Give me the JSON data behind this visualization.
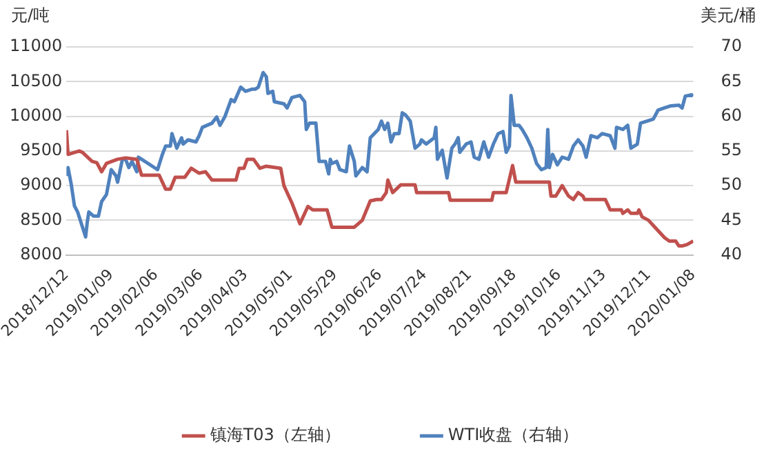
{
  "chart_data": {
    "type": "line",
    "ylabel": "元/吨",
    "y2label": "美元/桶",
    "legend": "bottom",
    "grid": "y",
    "marker": "none",
    "line_style": "solid",
    "ylim": [
      8000,
      11000
    ],
    "yticks": [
      8000,
      8500,
      9000,
      9500,
      10000,
      10500,
      11000
    ],
    "y2lim": [
      40,
      70
    ],
    "y2ticks": [
      40,
      45,
      50,
      55,
      60,
      65,
      70
    ],
    "xlim": [
      "2018-12-12",
      "2020-01-08"
    ],
    "xticks": [
      {
        "value": "2018-12-12",
        "label": "2018/12/12"
      },
      {
        "value": "2019-01-09",
        "label": "2019/01/09"
      },
      {
        "value": "2019-02-06",
        "label": "2019/02/06"
      },
      {
        "value": "2019-03-06",
        "label": "2019/03/06"
      },
      {
        "value": "2019-04-03",
        "label": "2019/04/03"
      },
      {
        "value": "2019-05-01",
        "label": "2019/05/01"
      },
      {
        "value": "2019-05-29",
        "label": "2019/05/29"
      },
      {
        "value": "2019-06-26",
        "label": "2019/06/26"
      },
      {
        "value": "2019-07-24",
        "label": "2019/07/24"
      },
      {
        "value": "2019-08-21",
        "label": "2019/08/21"
      },
      {
        "value": "2019-09-18",
        "label": "2019/09/18"
      },
      {
        "value": "2019-10-16",
        "label": "2019/10/16"
      },
      {
        "value": "2019-11-13",
        "label": "2019/11/13"
      },
      {
        "value": "2019-12-11",
        "label": "2019/12/11"
      },
      {
        "value": "2020-01-08",
        "label": "2020/01/08"
      }
    ],
    "series": [
      {
        "name": "镇海T03（左轴）",
        "color": "#c0504d",
        "x": [
          "2018-12-12",
          "2018-12-13",
          "2018-12-20",
          "2018-12-22",
          "2018-12-28",
          "2018-12-31",
          "2019-01-03",
          "2019-01-06",
          "2019-01-13",
          "2019-01-18",
          "2019-01-25",
          "2019-01-28",
          "2019-02-08",
          "2019-02-12",
          "2019-02-15",
          "2019-02-18",
          "2019-02-24",
          "2019-02-28",
          "2019-03-05",
          "2019-03-09",
          "2019-03-13",
          "2019-03-28",
          "2019-03-30",
          "2019-04-02",
          "2019-04-04",
          "2019-04-08",
          "2019-04-12",
          "2019-04-16",
          "2019-04-25",
          "2019-04-27",
          "2019-05-02",
          "2019-05-07",
          "2019-05-12",
          "2019-05-15",
          "2019-05-24",
          "2019-05-27",
          "2019-06-10",
          "2019-06-15",
          "2019-06-20",
          "2019-06-24",
          "2019-06-27",
          "2019-06-30",
          "2019-07-01",
          "2019-07-04",
          "2019-07-09",
          "2019-07-18",
          "2019-07-19",
          "2019-08-08",
          "2019-08-09",
          "2019-09-04",
          "2019-09-05",
          "2019-09-13",
          "2019-09-17",
          "2019-09-19",
          "2019-10-10",
          "2019-10-11",
          "2019-10-14",
          "2019-10-18",
          "2019-10-22",
          "2019-10-25",
          "2019-10-28",
          "2019-10-31",
          "2019-11-01",
          "2019-11-14",
          "2019-11-17",
          "2019-11-24",
          "2019-11-25",
          "2019-11-28",
          "2019-11-30",
          "2019-12-04",
          "2019-12-05",
          "2019-12-07",
          "2019-12-11",
          "2019-12-15",
          "2019-12-21",
          "2019-12-24",
          "2019-12-28",
          "2019-12-30",
          "2020-01-01",
          "2020-01-04",
          "2020-01-08"
        ],
        "values": [
          9800,
          9450,
          9500,
          9480,
          9350,
          9330,
          9200,
          9320,
          9380,
          9400,
          9380,
          9150,
          9150,
          8950,
          8950,
          9120,
          9120,
          9250,
          9180,
          9200,
          9080,
          9080,
          9250,
          9250,
          9380,
          9380,
          9250,
          9280,
          9250,
          9000,
          8750,
          8450,
          8700,
          8650,
          8650,
          8400,
          8400,
          8500,
          8780,
          8800,
          8800,
          8900,
          9080,
          8900,
          9010,
          9010,
          8900,
          8900,
          8790,
          8790,
          8900,
          8900,
          9290,
          9050,
          9050,
          8850,
          8850,
          9000,
          8850,
          8800,
          8900,
          8850,
          8800,
          8800,
          8650,
          8650,
          8600,
          8650,
          8600,
          8600,
          8650,
          8550,
          8500,
          8400,
          8250,
          8200,
          8200,
          8130,
          8130,
          8150,
          8200
        ]
      },
      {
        "name": "WTI收盘（右轴）",
        "color": "#4f81bd",
        "axis": "y2",
        "x": [
          "2018-12-12",
          "2018-12-13",
          "2018-12-15",
          "2018-12-17",
          "2018-12-19",
          "2018-12-24",
          "2018-12-25",
          "2018-12-26",
          "2018-12-29",
          "2019-01-01",
          "2019-01-03",
          "2019-01-06",
          "2019-01-09",
          "2019-01-12",
          "2019-01-13",
          "2019-01-16",
          "2019-01-18",
          "2019-01-20",
          "2019-01-22",
          "2019-01-25",
          "2019-01-26",
          "2019-02-07",
          "2019-02-10",
          "2019-02-12",
          "2019-02-15",
          "2019-02-16",
          "2019-02-19",
          "2019-02-22",
          "2019-02-23",
          "2019-02-26",
          "2019-03-03",
          "2019-03-05",
          "2019-03-07",
          "2019-03-13",
          "2019-03-16",
          "2019-03-18",
          "2019-03-21",
          "2019-03-25",
          "2019-03-27",
          "2019-03-31",
          "2019-04-03",
          "2019-04-07",
          "2019-04-09",
          "2019-04-11",
          "2019-04-14",
          "2019-04-16",
          "2019-04-17",
          "2019-04-20",
          "2019-04-21",
          "2019-04-27",
          "2019-04-29",
          "2019-05-02",
          "2019-05-07",
          "2019-05-10",
          "2019-05-11",
          "2019-05-13",
          "2019-05-17",
          "2019-05-19",
          "2019-05-23",
          "2019-05-25",
          "2019-05-26",
          "2019-05-27",
          "2019-05-30",
          "2019-06-01",
          "2019-06-05",
          "2019-06-07",
          "2019-06-10",
          "2019-06-11",
          "2019-06-15",
          "2019-06-18",
          "2019-06-20",
          "2019-06-25",
          "2019-06-27",
          "2019-06-29",
          "2019-07-01",
          "2019-07-03",
          "2019-07-05",
          "2019-07-08",
          "2019-07-10",
          "2019-07-12",
          "2019-07-15",
          "2019-07-18",
          "2019-07-21",
          "2019-07-22",
          "2019-07-25",
          "2019-07-30",
          "2019-07-31",
          "2019-08-01",
          "2019-08-04",
          "2019-08-07",
          "2019-08-10",
          "2019-08-12",
          "2019-08-14",
          "2019-08-15",
          "2019-08-19",
          "2019-08-22",
          "2019-08-24",
          "2019-08-27",
          "2019-08-30",
          "2019-09-02",
          "2019-09-05",
          "2019-09-08",
          "2019-09-11",
          "2019-09-13",
          "2019-09-15",
          "2019-09-16",
          "2019-09-18",
          "2019-09-21",
          "2019-09-23",
          "2019-09-26",
          "2019-09-29",
          "2019-10-02",
          "2019-10-05",
          "2019-10-08",
          "2019-10-09",
          "2019-10-10",
          "2019-10-12",
          "2019-10-15",
          "2019-10-18",
          "2019-10-22",
          "2019-10-25",
          "2019-10-28",
          "2019-10-31",
          "2019-11-02",
          "2019-11-05",
          "2019-11-09",
          "2019-11-12",
          "2019-11-17",
          "2019-11-20",
          "2019-11-21",
          "2019-11-25",
          "2019-11-28",
          "2019-11-30",
          "2019-12-04",
          "2019-12-06",
          "2019-12-10",
          "2019-12-14",
          "2019-12-17",
          "2019-12-21",
          "2019-12-25",
          "2019-12-30",
          "2020-01-01",
          "2020-01-03",
          "2020-01-07",
          "2020-01-08"
        ],
        "values": [
          51.4,
          52.6,
          50.2,
          47.1,
          46.2,
          42.6,
          44.7,
          46.2,
          45.6,
          45.6,
          47.7,
          48.7,
          52.3,
          51.4,
          50.5,
          53.8,
          53.8,
          52.6,
          53.5,
          52.0,
          54.1,
          52.3,
          54.5,
          55.7,
          55.7,
          57.5,
          55.4,
          56.9,
          56.0,
          56.6,
          56.3,
          57.2,
          58.4,
          59.0,
          59.9,
          58.7,
          59.9,
          62.4,
          62.1,
          64.2,
          63.6,
          63.9,
          63.9,
          64.2,
          66.3,
          65.7,
          63.3,
          63.6,
          62.1,
          61.8,
          61.2,
          62.7,
          63.0,
          62.1,
          58.1,
          59.0,
          59.0,
          53.5,
          53.5,
          51.7,
          53.8,
          53.2,
          53.5,
          52.3,
          52.0,
          55.7,
          53.5,
          51.4,
          52.6,
          52.0,
          56.9,
          58.1,
          59.3,
          58.1,
          59.0,
          56.3,
          57.5,
          57.5,
          60.5,
          60.2,
          59.3,
          55.4,
          56.0,
          56.6,
          56.0,
          56.9,
          58.4,
          53.8,
          55.1,
          51.1,
          55.4,
          56.0,
          56.9,
          54.8,
          56.0,
          56.3,
          54.1,
          53.8,
          56.3,
          54.1,
          56.0,
          57.5,
          57.8,
          54.8,
          55.7,
          63.0,
          58.7,
          58.7,
          58.1,
          56.9,
          55.4,
          53.2,
          52.3,
          52.6,
          58.1,
          52.6,
          54.5,
          53.0,
          54.1,
          53.8,
          55.7,
          56.6,
          55.7,
          54.1,
          57.2,
          56.9,
          57.5,
          57.2,
          55.4,
          58.4,
          58.1,
          58.7,
          55.4,
          56.0,
          59.0,
          59.3,
          59.6,
          60.9,
          61.2,
          61.5,
          61.6,
          61.2,
          62.9,
          63.1,
          62.9
        ]
      }
    ]
  }
}
